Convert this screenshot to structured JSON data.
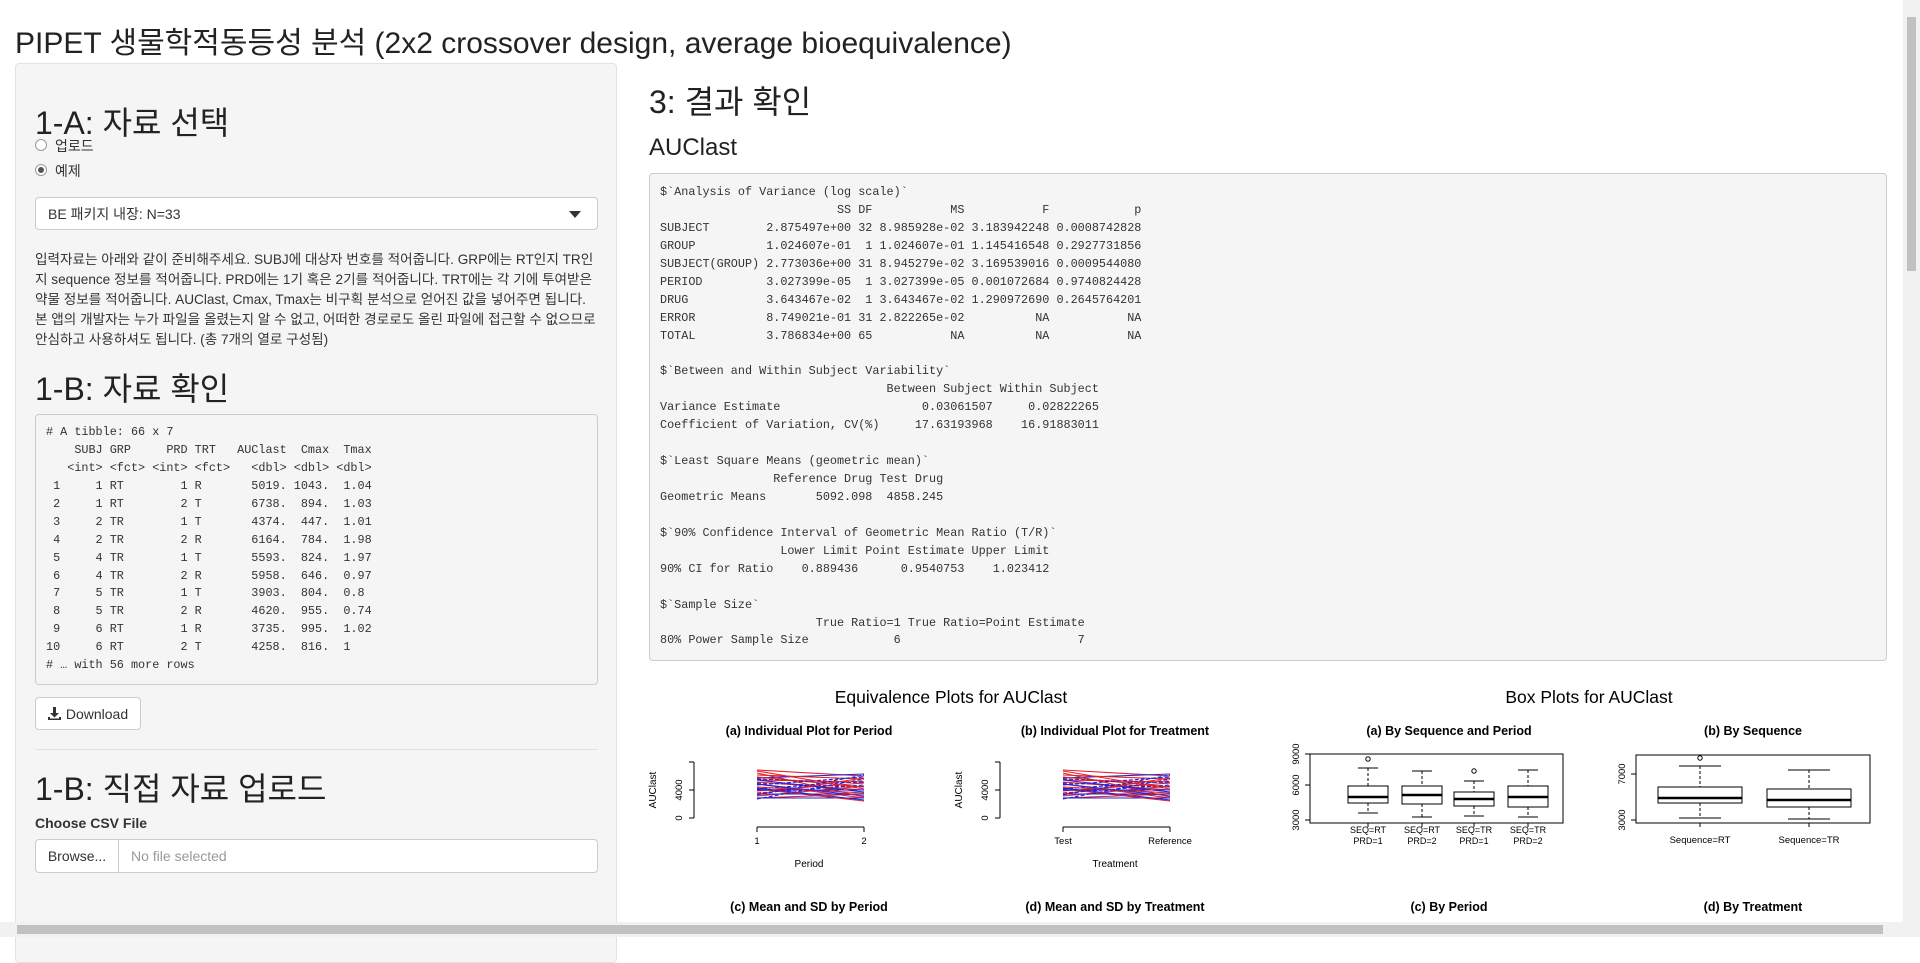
{
  "header": {
    "title": "PIPET 생물학적동등성 분석 (2x2 crossover design, average bioequivalence)"
  },
  "sidebar": {
    "section_a": {
      "title": "1-A: 자료 선택",
      "options": [
        "업로드",
        "예제"
      ],
      "dataset_select": "BE 패키지 내장: N=33",
      "instructions": "입력자료는 아래와 같이 준비해주세요. SUBJ에 대상자 번호를 적어줍니다. GRP에는 RT인지 TR인지 sequence 정보를 적어줍니다. PRD에는 1기 혹은 2기를 적어줍니다. TRT에는 각 기에 투여받은 약물 정보를 적어줍니다. AUClast, Cmax, Tmax는 비구획 분석으로 얻어진 값을 넣어주면 됩니다. 본 앱의 개발자는 누가 파일을 올렸는지 알 수 없고, 어떠한 경로로도 올린 파일에 접근할 수 없으므로 안심하고 사용하셔도 됩니다. (총 7개의 열로 구성됨)"
    },
    "section_b": {
      "title": "1-B: 자료 확인",
      "download_button": "Download",
      "tibble_lines": [
        "# A tibble: 66 x 7",
        "    SUBJ GRP     PRD TRT   AUClast  Cmax  Tmax",
        "   <int> <fct> <int> <fct>   <dbl> <dbl> <dbl>",
        " 1     1 RT        1 R       5019. 1043.  1.04",
        " 2     1 RT        2 T       6738.  894.  1.03",
        " 3     2 TR        1 T       4374.  447.  1.01",
        " 4     2 TR        2 R       6164.  784.  1.98",
        " 5     4 TR        1 T       5593.  824.  1.97",
        " 6     4 TR        2 R       5958.  646.  0.97",
        " 7     5 TR        1 T       3903.  804.  0.8",
        " 8     5 TR        2 R       4620.  955.  0.74",
        " 9     6 RT        1 R       3735.  995.  1.02",
        "10     6 RT        2 T       4258.  816.  1",
        "# … with 56 more rows"
      ]
    },
    "section_upload": {
      "title": "1-B: 직접 자료 업로드",
      "file_label": "Choose CSV File",
      "browse_button": "Browse...",
      "file_placeholder": "No file selected"
    }
  },
  "main": {
    "title": "3: 결과 확인",
    "metric": "AUClast",
    "output_lines": [
      "$`Analysis of Variance (log scale)`",
      "                         SS DF           MS           F            p",
      "SUBJECT        2.875497e+00 32 8.985928e-02 3.183942248 0.0008742828",
      "GROUP          1.024607e-01  1 1.024607e-01 1.145416548 0.2927731856",
      "SUBJECT(GROUP) 2.773036e+00 31 8.945279e-02 3.169539016 0.0009544080",
      "PERIOD         3.027399e-05  1 3.027399e-05 0.001072684 0.9740824428",
      "DRUG           3.643467e-02  1 3.643467e-02 1.290972690 0.2645764201",
      "ERROR          8.749021e-01 31 2.822265e-02          NA           NA",
      "TOTAL          3.786834e+00 65           NA          NA           NA",
      "",
      "$`Between and Within Subject Variability`",
      "                                Between Subject Within Subject",
      "Variance Estimate                    0.03061507     0.02822265",
      "Coefficient of Variation, CV(%)     17.63193968    16.91883011",
      "",
      "$`Least Square Means (geometric mean)`",
      "                Reference Drug Test Drug",
      "Geometric Means       5092.098  4858.245",
      "",
      "$`90% Confidence Interval of Geometric Mean Ratio (T/R)`",
      "                 Lower Limit Point Estimate Upper Limit",
      "90% CI for Ratio    0.889436      0.9540753    1.023412",
      "",
      "$`Sample Size`",
      "                      True Ratio=1 True Ratio=Point Estimate",
      "80% Power Sample Size            6                         7"
    ],
    "plots": [
      {
        "title": "Equivalence Plots for AUClast",
        "panels": [
          {
            "title": "(a) Individual Plot for Period",
            "y_label": "AUClast",
            "x_label": "Period",
            "y_ticks": [
              "0",
              "4000"
            ],
            "x_ticks": [
              "1",
              "2"
            ]
          },
          {
            "title": "(b) Individual Plot for Treatment",
            "y_label": "AUClast",
            "x_label": "Treatment",
            "y_ticks": [
              "0",
              "4000"
            ],
            "x_ticks": [
              "Test",
              "Reference"
            ]
          },
          {
            "title": "(c) Mean and SD by Period"
          },
          {
            "title": "(d) Mean and SD by Treatment"
          }
        ]
      },
      {
        "title": "Box Plots for AUClast",
        "panels": [
          {
            "title": "(a) By Sequence and Period",
            "y_ticks": [
              "3000",
              "6000",
              "9000"
            ],
            "x_ticks": [
              [
                "SEQ=RT",
                "PRD=1"
              ],
              [
                "SEQ=RT",
                "PRD=2"
              ],
              [
                "SEQ=TR",
                "PRD=1"
              ],
              [
                "SEQ=TR",
                "PRD=2"
              ]
            ]
          },
          {
            "title": "(b) By Sequence",
            "y_ticks": [
              "3000",
              "7000"
            ],
            "x_ticks": [
              "Sequence=RT",
              "Sequence=TR"
            ]
          },
          {
            "title": "(c) By Period"
          },
          {
            "title": "(d) By Treatment"
          }
        ]
      }
    ]
  }
}
